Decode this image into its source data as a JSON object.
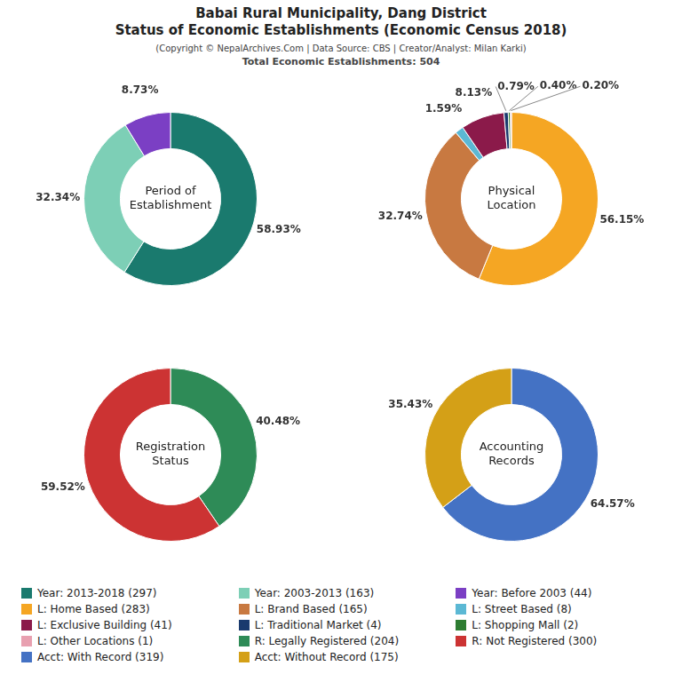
{
  "title": "Babai Rural Municipality, Dang District\nStatus of Economic Establishments (Economic Census 2018)",
  "subtitle": "(Copyright © NepalArchives.Com | Data Source: CBS | Creator/Analyst: Milan Karki)",
  "annotations": [
    "Total Economic Establishments: 504"
  ],
  "legend": "bottom",
  "chart_data": [
    {
      "type": "doughnut",
      "title": "Period of\nEstablishment",
      "categories": [
        "Year: 2013-2018 (297)",
        "Year: 2003-2013 (163)",
        "Year: Before 2003 (44)"
      ],
      "values": [
        58.93,
        32.34,
        8.73
      ],
      "value_labels": [
        "58.93%",
        "32.34%",
        "8.73%"
      ],
      "colors": [
        "#1a7a6e",
        "#7dcfb6",
        "#7b3fc4"
      ],
      "data_labels": true
    },
    {
      "type": "doughnut",
      "title": "Physical\nLocation",
      "categories": [
        "L: Home Based (283)",
        "L: Brand Based (165)",
        "L: Street Based (8)",
        "L: Exclusive Building (41)",
        "L: Traditional Market (4)",
        "L: Shopping Mall (2)",
        "L: Other Locations (1)"
      ],
      "values": [
        56.15,
        32.74,
        1.59,
        8.13,
        0.79,
        0.4,
        0.2
      ],
      "value_labels": [
        "56.15%",
        "32.74%",
        "1.59%",
        "8.13%",
        "0.79%",
        "0.40%",
        "0.20%"
      ],
      "colors": [
        "#f5a623",
        "#c87941",
        "#5bb8d4",
        "#8b1a4a",
        "#1a3a6e",
        "#2e7d32",
        "#e8a0b0"
      ],
      "data_labels": true
    },
    {
      "type": "doughnut",
      "title": "Registration\nStatus",
      "categories": [
        "R: Legally Registered (204)",
        "R: Not Registered (300)"
      ],
      "values": [
        40.48,
        59.52
      ],
      "value_labels": [
        "40.48%",
        "59.52%"
      ],
      "colors": [
        "#2e8b57",
        "#cc3333"
      ],
      "data_labels": true
    },
    {
      "type": "doughnut",
      "title": "Accounting\nRecords",
      "categories": [
        "Acct: With Record (319)",
        "Acct: Without Record (175)"
      ],
      "values": [
        64.57,
        35.43
      ],
      "value_labels": [
        "64.57%",
        "35.43%"
      ],
      "colors": [
        "#4472c4",
        "#d4a017"
      ],
      "data_labels": true
    }
  ]
}
